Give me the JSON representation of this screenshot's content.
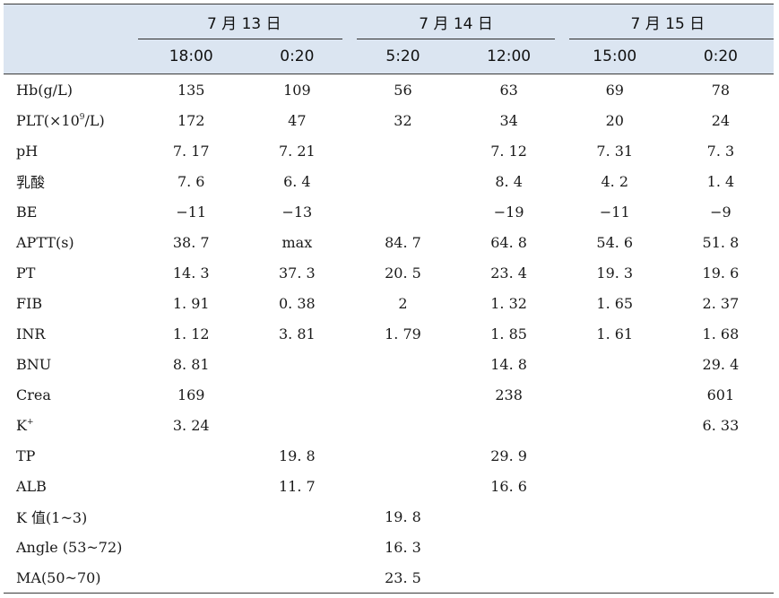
{
  "header": {
    "groups": [
      "7 月 13 日",
      "7 月 14 日",
      "7 月 15 日"
    ],
    "times": [
      "18:00",
      "0:20",
      "5:20",
      "12:00",
      "15:00",
      "0:20"
    ]
  },
  "rows": [
    {
      "label": "Hb(g/L)",
      "values": [
        "135",
        "109",
        "56",
        "63",
        "69",
        "78"
      ]
    },
    {
      "label_pre": "PLT(×10",
      "label_sup": "9",
      "label_post": "/L)",
      "values": [
        "172",
        "47",
        "32",
        "34",
        "20",
        "24"
      ]
    },
    {
      "label": "pH",
      "values": [
        "7. 17",
        "7. 21",
        "",
        "7. 12",
        "7. 31",
        "7. 3"
      ]
    },
    {
      "label": "乳酸",
      "values": [
        "7. 6",
        "6. 4",
        "",
        "8. 4",
        "4. 2",
        "1. 4"
      ]
    },
    {
      "label": "BE",
      "values": [
        "−11",
        "−13",
        "",
        "−19",
        "−11",
        "−9"
      ]
    },
    {
      "label": "APTT(s)",
      "values": [
        "38. 7",
        "max",
        "84. 7",
        "64. 8",
        "54. 6",
        "51. 8"
      ]
    },
    {
      "label": "PT",
      "values": [
        "14. 3",
        "37. 3",
        "20. 5",
        "23. 4",
        "19. 3",
        "19. 6"
      ]
    },
    {
      "label": "FIB",
      "values": [
        "1. 91",
        "0. 38",
        "2",
        "1. 32",
        "1. 65",
        "2. 37"
      ]
    },
    {
      "label": "INR",
      "values": [
        "1. 12",
        "3. 81",
        "1. 79",
        "1. 85",
        "1. 61",
        "1. 68"
      ]
    },
    {
      "label": "BNU",
      "values": [
        "8. 81",
        "",
        "",
        "14. 8",
        "",
        "29. 4"
      ]
    },
    {
      "label": "Crea",
      "values": [
        "169",
        "",
        "",
        "238",
        "",
        "601"
      ]
    },
    {
      "label_pre": "K",
      "label_sup": "+",
      "label_post": "",
      "values": [
        "3. 24",
        "",
        "",
        "",
        "",
        "6. 33"
      ]
    },
    {
      "label": "TP",
      "values": [
        "",
        "19. 8",
        "",
        "29. 9",
        "",
        ""
      ]
    },
    {
      "label": "ALB",
      "values": [
        "",
        "11. 7",
        "",
        "16. 6",
        "",
        ""
      ]
    },
    {
      "label": "K 值(1~3)",
      "values": [
        "",
        "",
        "19. 8",
        "",
        "",
        ""
      ]
    },
    {
      "label": "Angle (53~72)",
      "values": [
        "",
        "",
        "16. 3",
        "",
        "",
        ""
      ]
    },
    {
      "label": "MA(50~70)",
      "values": [
        "",
        "",
        "23. 5",
        "",
        "",
        ""
      ]
    }
  ]
}
